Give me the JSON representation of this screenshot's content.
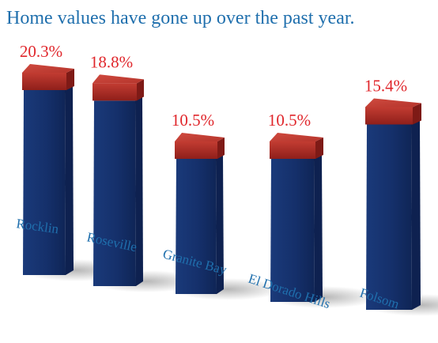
{
  "chart_data": {
    "type": "bar",
    "title": "Home values have gone up over the past year.",
    "categories": [
      "Rocklin",
      "Roseville",
      "Granite Bay",
      "El Dorado Hills",
      "Folsom"
    ],
    "values": [
      20.3,
      18.8,
      10.5,
      10.5,
      15.4
    ],
    "value_labels": [
      "20.3%",
      "18.8%",
      "10.5%",
      "10.5%",
      "15.4%"
    ],
    "value_unit": "%",
    "xlabel": "",
    "ylabel": "",
    "grid": false,
    "legend": "none",
    "style": "3d-columns",
    "colors": {
      "title": "#1f6fad",
      "category_label": "#1f6fad",
      "value_label": "#e0262b",
      "column_front": "#15306b",
      "column_side": "#0e2150",
      "cap_front": "#b2322a",
      "cap_top": "#c9443a"
    }
  }
}
